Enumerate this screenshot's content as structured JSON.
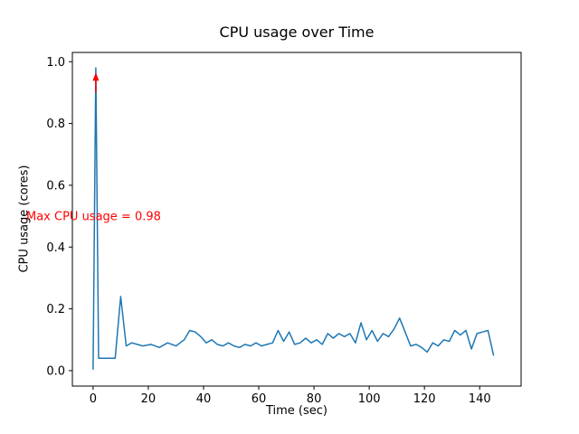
{
  "figure": {
    "background": "#ffffff"
  },
  "chart_data": {
    "type": "line",
    "title": "CPU usage over Time",
    "xlabel": "Time (sec)",
    "ylabel": "CPU usage (cores)",
    "grid": false,
    "legend": "none",
    "line_color": "#1f77b4",
    "line_width": 1.5,
    "xlim": [
      -7.5,
      155
    ],
    "ylim": [
      -0.05,
      1.03
    ],
    "xticks": [
      0,
      20,
      40,
      60,
      80,
      100,
      120,
      140
    ],
    "xtick_labels": [
      "0",
      "20",
      "40",
      "60",
      "80",
      "100",
      "120",
      "140"
    ],
    "yticks": [
      0.0,
      0.2,
      0.4,
      0.6,
      0.8,
      1.0
    ],
    "ytick_labels": [
      "0.0",
      "0.2",
      "0.4",
      "0.6",
      "0.8",
      "1.0"
    ],
    "x": [
      0,
      1,
      2,
      4,
      6,
      8,
      10,
      12,
      14,
      16,
      18,
      21,
      24,
      27,
      30,
      33,
      35,
      37,
      39,
      41,
      43,
      45,
      47,
      49,
      51,
      53,
      55,
      57,
      59,
      61,
      63,
      65,
      67,
      69,
      71,
      73,
      75,
      77,
      79,
      81,
      83,
      85,
      87,
      89,
      91,
      93,
      95,
      97,
      99,
      101,
      103,
      105,
      107,
      109,
      111,
      113,
      115,
      117,
      119,
      121,
      123,
      125,
      127,
      129,
      131,
      133,
      135,
      137,
      139,
      141,
      143,
      145
    ],
    "y": [
      0.005,
      0.98,
      0.04,
      0.04,
      0.04,
      0.04,
      0.24,
      0.08,
      0.09,
      0.085,
      0.08,
      0.085,
      0.075,
      0.09,
      0.08,
      0.1,
      0.13,
      0.125,
      0.11,
      0.09,
      0.1,
      0.085,
      0.08,
      0.09,
      0.08,
      0.075,
      0.085,
      0.08,
      0.09,
      0.08,
      0.085,
      0.09,
      0.13,
      0.095,
      0.125,
      0.085,
      0.09,
      0.105,
      0.09,
      0.1,
      0.085,
      0.12,
      0.105,
      0.12,
      0.11,
      0.12,
      0.09,
      0.155,
      0.1,
      0.13,
      0.095,
      0.12,
      0.11,
      0.135,
      0.17,
      0.125,
      0.08,
      0.085,
      0.075,
      0.06,
      0.09,
      0.08,
      0.1,
      0.095,
      0.13,
      0.115,
      0.13,
      0.07,
      0.12,
      0.125,
      0.13,
      0.05
    ],
    "max_value": 0.98,
    "annotation": {
      "text": "Max CPU usage = 0.98",
      "color": "#ff0000",
      "arrow_x": 1,
      "arrow_tip_y": 0.965,
      "arrow_tail_y": 0.9
    }
  }
}
